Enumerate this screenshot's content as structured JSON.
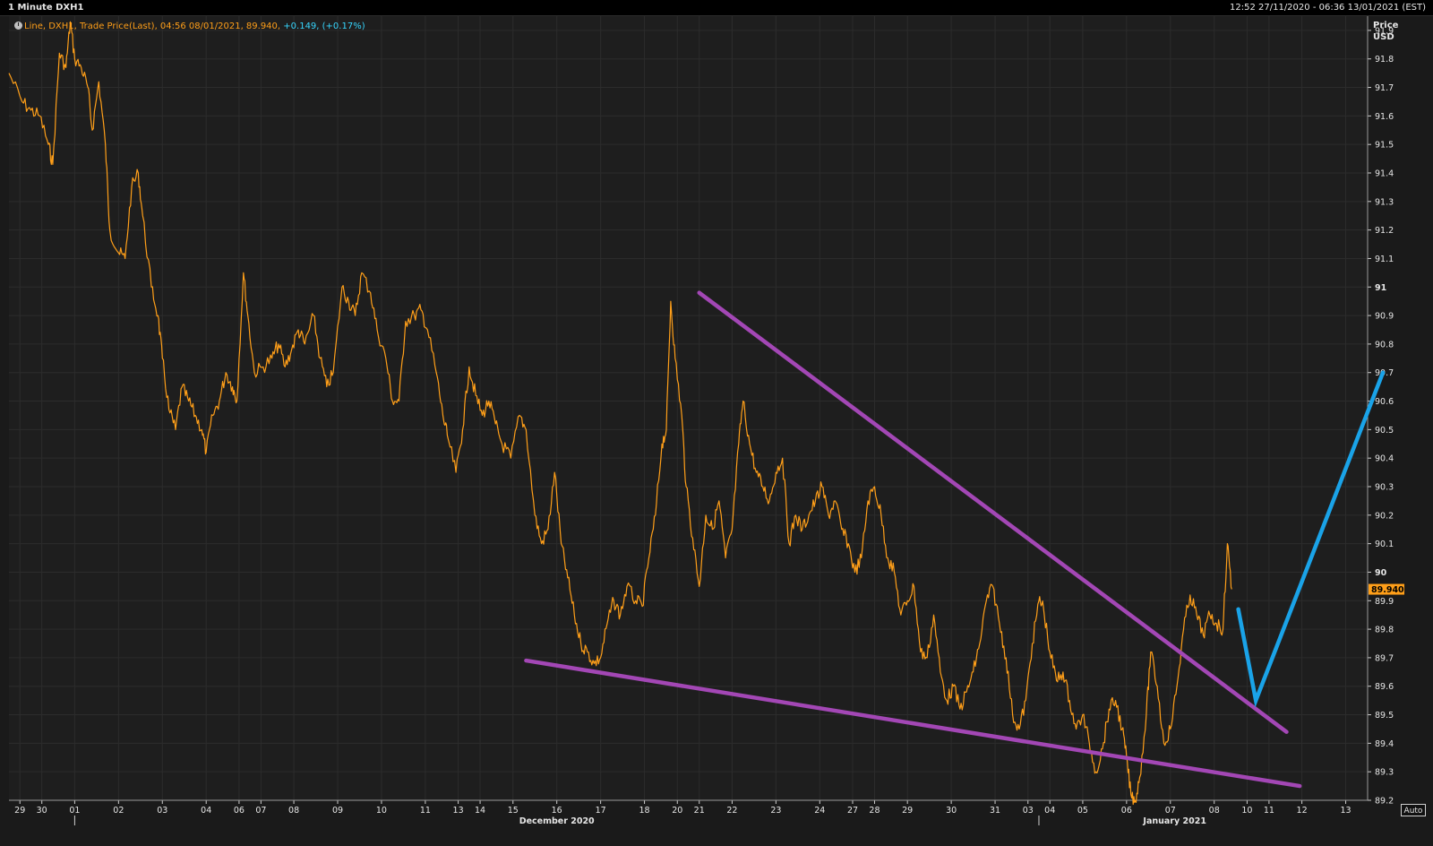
{
  "header": {
    "title": "1 Minute DXH1",
    "range": "12:52 27/11/2020 - 06:36 13/01/2021 (EST)"
  },
  "legend": {
    "icon": "clock-icon",
    "text": "Line, DXH1, Trade Price(Last), 04:56 08/01/2021, 89.940,",
    "change": "+0.149, (+0.17%)"
  },
  "axis": {
    "title_line1": "Price",
    "title_line2": "USD",
    "auto_label": "Auto"
  },
  "colors": {
    "background": "#1a1a1a",
    "grid": "#2c2c2c",
    "price_line": "#ff9f19",
    "trendline": "#a347b5",
    "projection": "#1aa3e8",
    "last_price_tag": "#ff9f19",
    "change_text": "#37d7ff"
  },
  "chart_data": {
    "type": "line",
    "title": "1 Minute DXH1",
    "ylabel": "Price USD",
    "ylim": [
      89.2,
      91.95
    ],
    "y_ticks": [
      89.2,
      89.3,
      89.4,
      89.5,
      89.6,
      89.7,
      89.8,
      89.9,
      90,
      90.1,
      90.2,
      90.3,
      90.4,
      90.5,
      90.6,
      90.7,
      90.8,
      90.9,
      91,
      91.1,
      91.2,
      91.3,
      91.4,
      91.5,
      91.6,
      91.7,
      91.8,
      91.9
    ],
    "y_tick_labels": [
      "89.2",
      "89.3",
      "89.4",
      "89.5",
      "89.6",
      "89.7",
      "89.8",
      "89.9",
      "90",
      "90.1",
      "90.2",
      "90.3",
      "90.4",
      "90.5",
      "90.6",
      "90.7",
      "90.8",
      "90.9",
      "91",
      "91.1",
      "91.2",
      "91.3",
      "91.4",
      "91.5",
      "91.6",
      "91.7",
      "91.8",
      "91.9"
    ],
    "x_ticks": [
      {
        "i": 0.5,
        "label": "29"
      },
      {
        "i": 1.5,
        "label": "30"
      },
      {
        "i": 3,
        "label": "01"
      },
      {
        "i": 5,
        "label": "02"
      },
      {
        "i": 7,
        "label": "03"
      },
      {
        "i": 9,
        "label": "04"
      },
      {
        "i": 10.5,
        "label": "06"
      },
      {
        "i": 11.5,
        "label": "07"
      },
      {
        "i": 13,
        "label": "08"
      },
      {
        "i": 15,
        "label": "09"
      },
      {
        "i": 17,
        "label": "10"
      },
      {
        "i": 19,
        "label": "11"
      },
      {
        "i": 20.5,
        "label": "13"
      },
      {
        "i": 21.5,
        "label": "14"
      },
      {
        "i": 23,
        "label": "15"
      },
      {
        "i": 25,
        "label": "16"
      },
      {
        "i": 27,
        "label": "17"
      },
      {
        "i": 29,
        "label": "18"
      },
      {
        "i": 30.5,
        "label": "20"
      },
      {
        "i": 31.5,
        "label": "21"
      },
      {
        "i": 33,
        "label": "22"
      },
      {
        "i": 35,
        "label": "23"
      },
      {
        "i": 37,
        "label": "24"
      },
      {
        "i": 38.5,
        "label": "27"
      },
      {
        "i": 39.5,
        "label": "28"
      },
      {
        "i": 41,
        "label": "29"
      },
      {
        "i": 43,
        "label": "30"
      },
      {
        "i": 45,
        "label": "31"
      },
      {
        "i": 46.5,
        "label": "03"
      },
      {
        "i": 47.5,
        "label": "04"
      },
      {
        "i": 49,
        "label": "05"
      },
      {
        "i": 51,
        "label": "06"
      },
      {
        "i": 53,
        "label": "07"
      },
      {
        "i": 55,
        "label": "08"
      },
      {
        "i": 56.5,
        "label": "10"
      },
      {
        "i": 57.5,
        "label": "11"
      },
      {
        "i": 59,
        "label": "12"
      },
      {
        "i": 61,
        "label": "13"
      }
    ],
    "x_month_labels": [
      {
        "i": 25,
        "label": "December 2020",
        "sep": 3
      },
      {
        "i": 53.2,
        "label": "January 2021",
        "sep": 47
      }
    ],
    "x_range": [
      0,
      62
    ],
    "series": [
      {
        "points": [
          [
            0,
            91.75
          ],
          [
            0.6,
            91.65
          ],
          [
            1.0,
            91.62
          ],
          [
            1.4,
            91.6
          ],
          [
            1.8,
            91.5
          ],
          [
            2.0,
            91.43
          ],
          [
            2.3,
            91.82
          ],
          [
            2.6,
            91.77
          ],
          [
            2.8,
            91.93
          ],
          [
            3.0,
            91.8
          ],
          [
            3.3,
            91.77
          ],
          [
            3.6,
            91.7
          ],
          [
            3.8,
            91.55
          ],
          [
            4.1,
            91.72
          ],
          [
            4.4,
            91.5
          ],
          [
            4.6,
            91.2
          ],
          [
            5.0,
            91.12
          ],
          [
            5.3,
            91.1
          ],
          [
            5.6,
            91.35
          ],
          [
            5.9,
            91.4
          ],
          [
            6.1,
            91.25
          ],
          [
            6.5,
            91.0
          ],
          [
            6.8,
            90.9
          ],
          [
            7.0,
            90.75
          ],
          [
            7.3,
            90.57
          ],
          [
            7.6,
            90.5
          ],
          [
            7.9,
            90.65
          ],
          [
            8.2,
            90.6
          ],
          [
            8.5,
            90.55
          ],
          [
            8.8,
            90.5
          ],
          [
            9.0,
            90.42
          ],
          [
            9.3,
            90.55
          ],
          [
            9.6,
            90.6
          ],
          [
            9.9,
            90.7
          ],
          [
            10.2,
            90.65
          ],
          [
            10.4,
            90.6
          ],
          [
            10.7,
            91.05
          ],
          [
            10.9,
            90.9
          ],
          [
            11.2,
            90.7
          ],
          [
            11.6,
            90.72
          ],
          [
            12.0,
            90.75
          ],
          [
            12.3,
            90.8
          ],
          [
            12.6,
            90.72
          ],
          [
            12.9,
            90.78
          ],
          [
            13.2,
            90.85
          ],
          [
            13.5,
            90.8
          ],
          [
            13.9,
            90.9
          ],
          [
            14.2,
            90.75
          ],
          [
            14.5,
            90.65
          ],
          [
            14.8,
            90.7
          ],
          [
            15.2,
            91.0
          ],
          [
            15.5,
            90.95
          ],
          [
            15.8,
            90.9
          ],
          [
            16.1,
            91.05
          ],
          [
            16.5,
            90.98
          ],
          [
            16.8,
            90.85
          ],
          [
            17.2,
            90.75
          ],
          [
            17.5,
            90.6
          ],
          [
            17.8,
            90.6
          ],
          [
            18.1,
            90.88
          ],
          [
            18.5,
            90.9
          ],
          [
            18.8,
            90.92
          ],
          [
            19.1,
            90.85
          ],
          [
            19.5,
            90.7
          ],
          [
            19.8,
            90.55
          ],
          [
            20.0,
            90.48
          ],
          [
            20.4,
            90.35
          ],
          [
            20.7,
            90.5
          ],
          [
            21.0,
            90.72
          ],
          [
            21.3,
            90.62
          ],
          [
            21.6,
            90.55
          ],
          [
            21.9,
            90.6
          ],
          [
            22.2,
            90.52
          ],
          [
            22.5,
            90.45
          ],
          [
            22.9,
            90.4
          ],
          [
            23.3,
            90.55
          ],
          [
            23.6,
            90.5
          ],
          [
            24.0,
            90.2
          ],
          [
            24.3,
            90.1
          ],
          [
            24.6,
            90.15
          ],
          [
            24.9,
            90.35
          ],
          [
            25.2,
            90.1
          ],
          [
            25.5,
            89.98
          ],
          [
            25.8,
            89.85
          ],
          [
            26.1,
            89.75
          ],
          [
            26.4,
            89.72
          ],
          [
            26.7,
            89.68
          ],
          [
            27.0,
            89.7
          ],
          [
            27.3,
            89.82
          ],
          [
            27.6,
            89.9
          ],
          [
            27.9,
            89.85
          ],
          [
            28.2,
            89.95
          ],
          [
            28.6,
            89.9
          ],
          [
            28.9,
            89.88
          ],
          [
            29.2,
            90.05
          ],
          [
            29.5,
            90.2
          ],
          [
            29.8,
            90.45
          ],
          [
            30.0,
            90.5
          ],
          [
            30.2,
            90.95
          ],
          [
            30.4,
            90.75
          ],
          [
            30.7,
            90.55
          ],
          [
            30.9,
            90.3
          ],
          [
            31.2,
            90.12
          ],
          [
            31.5,
            89.95
          ],
          [
            31.8,
            90.2
          ],
          [
            32.1,
            90.15
          ],
          [
            32.4,
            90.25
          ],
          [
            32.7,
            90.05
          ],
          [
            33.0,
            90.15
          ],
          [
            33.3,
            90.45
          ],
          [
            33.5,
            90.6
          ],
          [
            33.8,
            90.45
          ],
          [
            34.1,
            90.35
          ],
          [
            34.4,
            90.3
          ],
          [
            34.7,
            90.25
          ],
          [
            35.0,
            90.35
          ],
          [
            35.3,
            90.4
          ],
          [
            35.6,
            90.1
          ],
          [
            35.9,
            90.2
          ],
          [
            36.2,
            90.15
          ],
          [
            36.5,
            90.2
          ],
          [
            36.8,
            90.25
          ],
          [
            37.1,
            90.3
          ],
          [
            37.4,
            90.2
          ],
          [
            37.7,
            90.25
          ],
          [
            38.0,
            90.15
          ],
          [
            38.3,
            90.1
          ],
          [
            38.6,
            90.0
          ],
          [
            38.9,
            90.05
          ],
          [
            39.2,
            90.25
          ],
          [
            39.5,
            90.3
          ],
          [
            39.8,
            90.2
          ],
          [
            40.1,
            90.05
          ],
          [
            40.4,
            90.0
          ],
          [
            40.7,
            89.85
          ],
          [
            41.0,
            89.9
          ],
          [
            41.3,
            89.95
          ],
          [
            41.6,
            89.72
          ],
          [
            41.9,
            89.7
          ],
          [
            42.2,
            89.85
          ],
          [
            42.5,
            89.65
          ],
          [
            42.8,
            89.55
          ],
          [
            43.1,
            89.6
          ],
          [
            43.4,
            89.52
          ],
          [
            43.7,
            89.58
          ],
          [
            44.0,
            89.65
          ],
          [
            44.3,
            89.75
          ],
          [
            44.6,
            89.9
          ],
          [
            44.9,
            89.95
          ],
          [
            45.2,
            89.82
          ],
          [
            45.5,
            89.7
          ],
          [
            45.8,
            89.5
          ],
          [
            46.1,
            89.45
          ],
          [
            46.4,
            89.55
          ],
          [
            46.7,
            89.75
          ],
          [
            47.0,
            89.9
          ],
          [
            47.2,
            89.88
          ],
          [
            47.5,
            89.72
          ],
          [
            47.8,
            89.62
          ],
          [
            48.1,
            89.65
          ],
          [
            48.4,
            89.55
          ],
          [
            48.7,
            89.45
          ],
          [
            49.0,
            89.5
          ],
          [
            49.3,
            89.4
          ],
          [
            49.6,
            89.3
          ],
          [
            49.9,
            89.38
          ],
          [
            50.2,
            89.52
          ],
          [
            50.5,
            89.55
          ],
          [
            50.8,
            89.45
          ],
          [
            51.0,
            89.35
          ],
          [
            51.2,
            89.22
          ],
          [
            51.4,
            89.2
          ],
          [
            51.6,
            89.28
          ],
          [
            51.9,
            89.5
          ],
          [
            52.1,
            89.72
          ],
          [
            52.4,
            89.6
          ],
          [
            52.7,
            89.4
          ],
          [
            53.0,
            89.45
          ],
          [
            53.3,
            89.6
          ],
          [
            53.6,
            89.8
          ],
          [
            53.9,
            89.92
          ],
          [
            54.2,
            89.85
          ],
          [
            54.5,
            89.78
          ],
          [
            54.8,
            89.85
          ],
          [
            55.1,
            89.82
          ],
          [
            55.4,
            89.8
          ],
          [
            55.6,
            90.1
          ],
          [
            55.8,
            89.94
          ]
        ]
      }
    ],
    "trendlines": [
      {
        "from": [
          31.5,
          90.98
        ],
        "to": [
          58.3,
          89.44
        ]
      },
      {
        "from": [
          23.6,
          89.69
        ],
        "to": [
          58.9,
          89.25
        ]
      }
    ],
    "projection": [
      [
        56.1,
        89.87
      ],
      [
        56.9,
        89.55
      ],
      [
        62.7,
        90.7
      ]
    ],
    "last_price": {
      "value": 89.94,
      "label": "89.940"
    }
  }
}
